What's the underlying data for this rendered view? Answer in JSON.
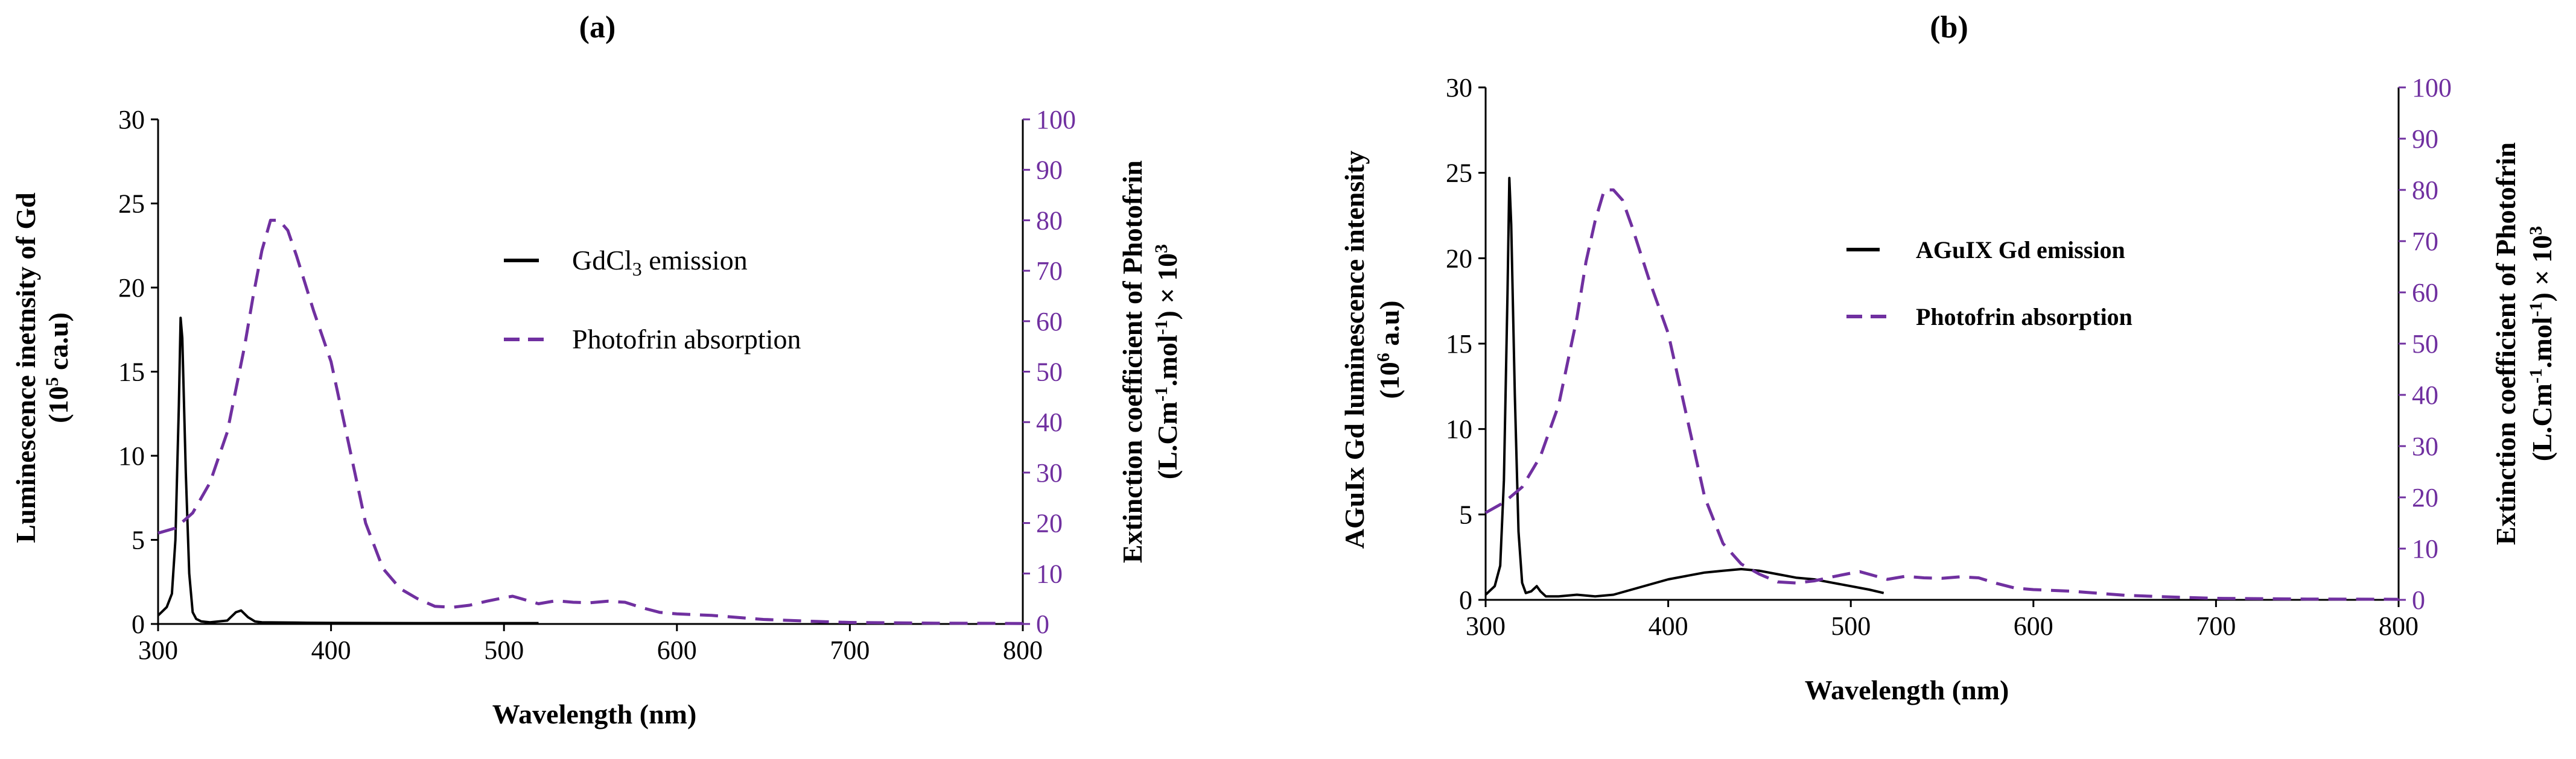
{
  "colors": {
    "emission": "#000000",
    "absorption": "#7030A0",
    "axis": "#000000"
  },
  "chart_data": [
    {
      "type": "line",
      "panel_label": "(a)",
      "xlabel": "Wavelength (nm)",
      "xlim": [
        300,
        800
      ],
      "x_ticks": [
        "300",
        "400",
        "500",
        "600",
        "700",
        "800"
      ],
      "ylabel_left_line1": "Luminescence inetnsity of Gd",
      "ylabel_left_line2_pre": "(10",
      "ylabel_left_line2_sup": "5",
      "ylabel_left_line2_post": " ca.u)",
      "ylim_left": [
        0,
        30
      ],
      "y_ticks_left": [
        "0",
        "5",
        "10",
        "15",
        "20",
        "25",
        "30"
      ],
      "ylabel_right_line1": "Extinction coefficient of Photofrin",
      "ylabel_right_line2_pre": "(L.Cm",
      "ylabel_right_line2_sup1": "-1",
      "ylabel_right_line2_mid": ".mol",
      "ylabel_right_line2_sup2": "-1",
      "ylabel_right_line2_post": ") × 10",
      "ylabel_right_line2_sup3": "3",
      "ylim_right": [
        0,
        100
      ],
      "y_ticks_right": [
        "0",
        "10",
        "20",
        "30",
        "40",
        "50",
        "60",
        "70",
        "80",
        "90",
        "100"
      ],
      "legend_emission_pre": "GdCl",
      "legend_emission_sub": "3",
      "legend_emission_post": " emission",
      "legend_absorption": "Photofrin absorption",
      "series": [
        {
          "name": "GdCl3 emission",
          "axis": "left",
          "x": [
            300,
            305,
            308,
            310,
            312,
            313,
            314,
            316,
            318,
            320,
            322,
            325,
            330,
            340,
            345,
            348,
            352,
            356,
            360,
            380,
            400,
            450,
            500,
            520
          ],
          "y": [
            0.5,
            1.0,
            1.8,
            5.0,
            13.0,
            18.2,
            17.0,
            9.0,
            3.0,
            0.7,
            0.3,
            0.15,
            0.1,
            0.2,
            0.7,
            0.8,
            0.4,
            0.15,
            0.1,
            0.08,
            0.06,
            0.05,
            0.05,
            0.05
          ]
        },
        {
          "name": "Photofrin absorption",
          "axis": "right",
          "x": [
            300,
            310,
            320,
            330,
            340,
            350,
            355,
            360,
            365,
            370,
            375,
            380,
            390,
            400,
            410,
            420,
            430,
            440,
            450,
            460,
            470,
            480,
            490,
            500,
            505,
            510,
            520,
            530,
            540,
            550,
            560,
            570,
            580,
            590,
            600,
            620,
            650,
            680,
            700,
            750,
            800
          ],
          "y": [
            18,
            19,
            22,
            28,
            38,
            55,
            65,
            74,
            80,
            80,
            78,
            73,
            62,
            52,
            36,
            20,
            11,
            7,
            5,
            3.5,
            3.3,
            3.7,
            4.5,
            5.2,
            5.5,
            5.0,
            4.0,
            4.6,
            4.3,
            4.2,
            4.5,
            4.3,
            3.2,
            2.3,
            2.0,
            1.7,
            0.9,
            0.5,
            0.3,
            0.15,
            0.1
          ]
        }
      ]
    },
    {
      "type": "line",
      "panel_label": "(b)",
      "xlabel": "Wavelength (nm)",
      "xlim": [
        300,
        800
      ],
      "x_ticks": [
        "300",
        "400",
        "500",
        "600",
        "700",
        "800"
      ],
      "ylabel_left_line1": "AGuIx Gd luminescence intensity",
      "ylabel_left_line2_pre": "(10",
      "ylabel_left_line2_sup": "6",
      "ylabel_left_line2_post": " a.u)",
      "ylim_left": [
        0,
        30
      ],
      "y_ticks_left": [
        "0",
        "5",
        "10",
        "15",
        "20",
        "25",
        "30"
      ],
      "ylabel_right_line1": "Extinction coefficient of Photofrin",
      "ylabel_right_line2_pre": "(L.Cm",
      "ylabel_right_line2_sup1": "-1",
      "ylabel_right_line2_mid": ".mol",
      "ylabel_right_line2_sup2": "-1",
      "ylabel_right_line2_post": ") × 10",
      "ylabel_right_line2_sup3": "3",
      "ylim_right": [
        0,
        100
      ],
      "y_ticks_right": [
        "0",
        "10",
        "20",
        "30",
        "40",
        "50",
        "60",
        "70",
        "80",
        "90",
        "100"
      ],
      "legend_emission": "AGuIX Gd emission",
      "legend_absorption": "Photofrin absorption",
      "series": [
        {
          "name": "AGuIX Gd emission",
          "axis": "left",
          "x": [
            300,
            305,
            308,
            310,
            312,
            313,
            314,
            316,
            318,
            320,
            322,
            325,
            328,
            330,
            333,
            340,
            350,
            360,
            370,
            380,
            390,
            400,
            410,
            420,
            430,
            440,
            450,
            460,
            470,
            480,
            490,
            500,
            510,
            518
          ],
          "y": [
            0.3,
            0.8,
            2.0,
            7.0,
            18.0,
            24.7,
            22.0,
            12.0,
            4.0,
            1.0,
            0.4,
            0.5,
            0.8,
            0.5,
            0.2,
            0.2,
            0.3,
            0.2,
            0.3,
            0.6,
            0.9,
            1.2,
            1.4,
            1.6,
            1.7,
            1.8,
            1.7,
            1.5,
            1.3,
            1.2,
            1.0,
            0.8,
            0.6,
            0.4
          ]
        },
        {
          "name": "Photofrin absorption",
          "axis": "right",
          "x": [
            300,
            310,
            320,
            330,
            340,
            350,
            355,
            360,
            365,
            370,
            375,
            380,
            390,
            400,
            410,
            420,
            430,
            440,
            450,
            460,
            470,
            480,
            490,
            500,
            505,
            510,
            520,
            530,
            540,
            550,
            560,
            570,
            580,
            590,
            600,
            620,
            650,
            680,
            700,
            750,
            800
          ],
          "y": [
            17,
            19,
            22,
            28,
            38,
            55,
            66,
            74,
            80,
            80,
            78,
            73,
            62,
            52,
            36,
            20,
            11,
            7,
            5,
            3.5,
            3.3,
            3.7,
            4.5,
            5.2,
            5.5,
            5.0,
            4.0,
            4.6,
            4.3,
            4.2,
            4.5,
            4.3,
            3.2,
            2.3,
            2.0,
            1.7,
            0.9,
            0.5,
            0.3,
            0.15,
            0.1
          ]
        }
      ]
    }
  ]
}
